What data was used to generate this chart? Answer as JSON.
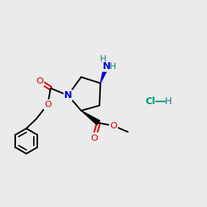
{
  "background_color": "#ebebeb",
  "atom_colors": {
    "N": "#0000dd",
    "O": "#dd0000",
    "H": "#008080",
    "Cl": "#009977",
    "C": "#000000"
  },
  "bond_color": "#000000",
  "bond_width": 1.6,
  "figsize": [
    3.0,
    3.0
  ],
  "dpi": 100
}
